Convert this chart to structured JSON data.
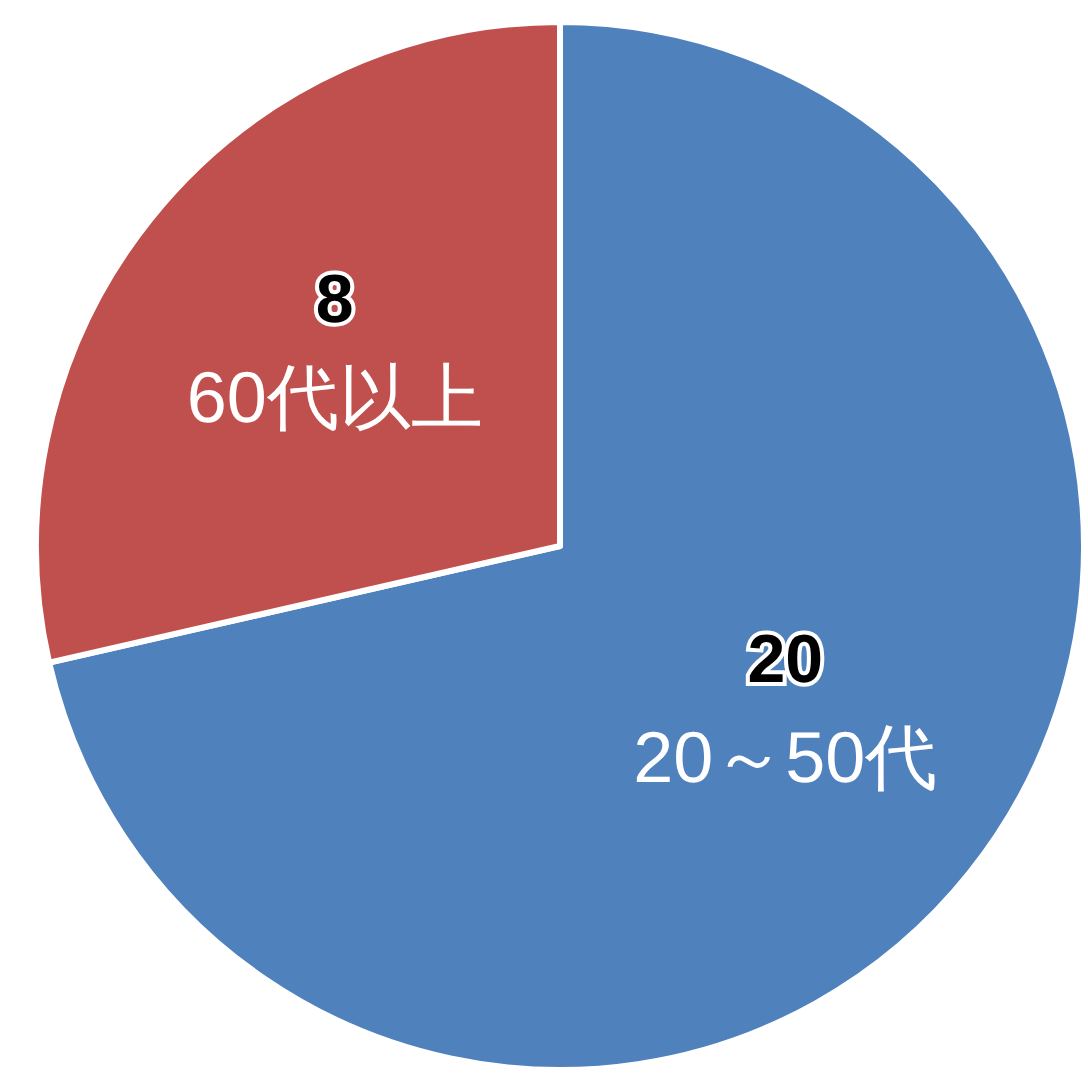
{
  "chart_data": {
    "type": "pie",
    "categories": [
      "20～50代",
      "60代以上"
    ],
    "values": [
      20,
      8
    ],
    "colors": [
      "#4f81bd",
      "#c0504d"
    ],
    "data_labels": true
  }
}
